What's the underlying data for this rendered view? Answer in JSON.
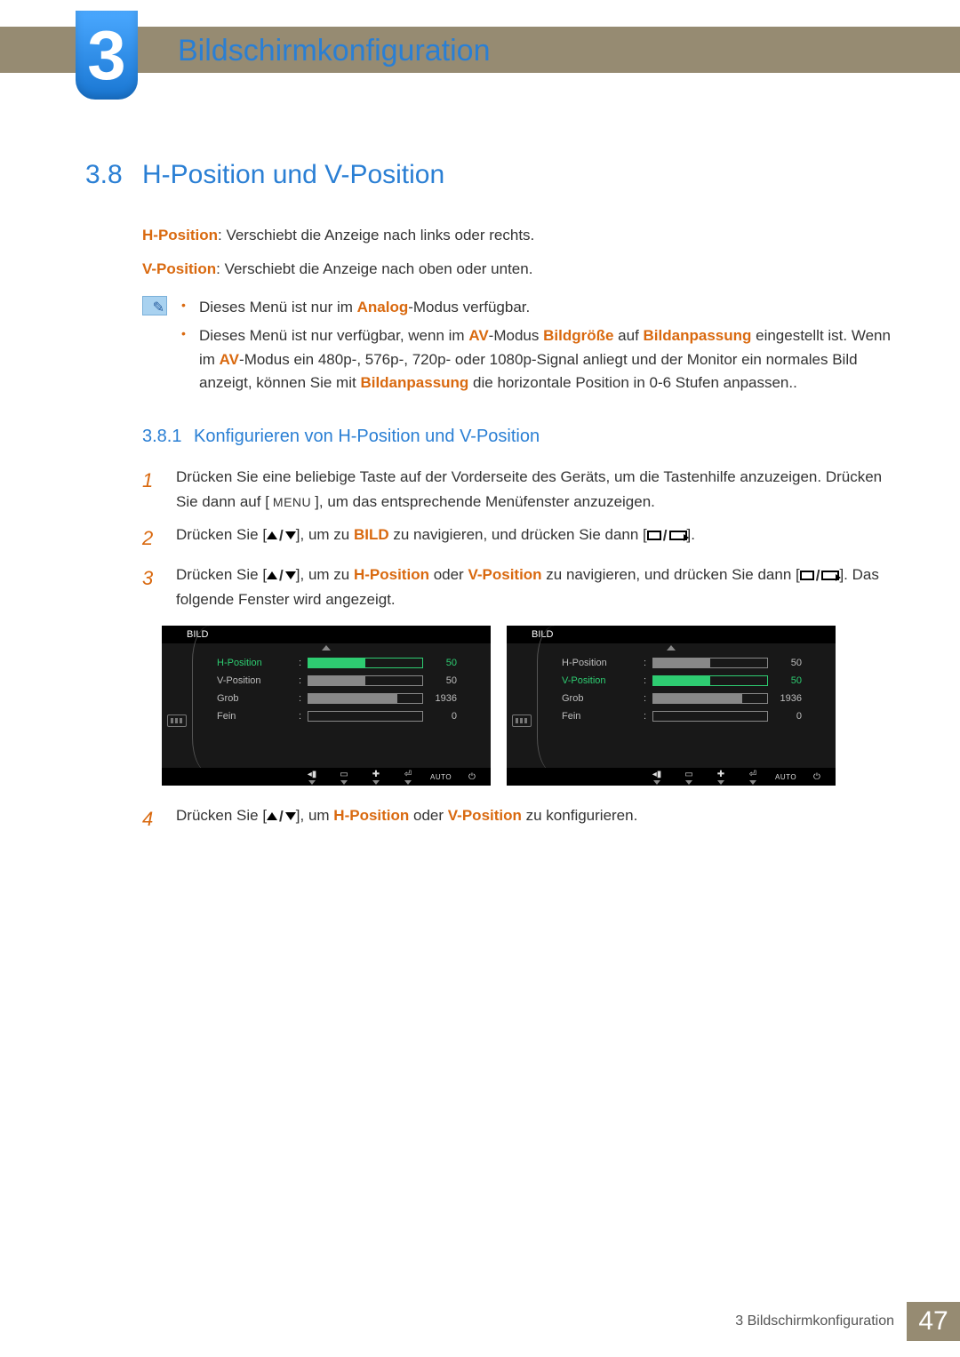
{
  "chapter": {
    "number": "3",
    "title": "Bildschirmkonfiguration"
  },
  "section": {
    "number": "3.8",
    "title": "H-Position und V-Position",
    "hpos_label": "H-Position",
    "hpos_desc": ": Verschiebt die Anzeige nach links oder rechts.",
    "vpos_label": "V-Position",
    "vpos_desc": ": Verschiebt die Anzeige nach oben oder unten."
  },
  "notes": {
    "b1_a": "Dieses Menü ist nur im ",
    "b1_em": "Analog",
    "b1_b": "-Modus verfügbar.",
    "b2_a": "Dieses Menü ist nur verfügbar, wenn im ",
    "b2_em1": "AV",
    "b2_b": "-Modus ",
    "b2_em2": "Bildgröße",
    "b2_c": " auf ",
    "b2_em3": "Bildanpassung",
    "b2_d": " eingestellt ist. Wenn im ",
    "b2_em4": "AV",
    "b2_e": "-Modus ein 480p-, 576p-, 720p- oder 1080p-Signal anliegt und der Monitor ein normales Bild anzeigt, können Sie mit ",
    "b2_em5": "Bildanpassung",
    "b2_f": " die horizontale Position in 0-6 Stufen anpassen.."
  },
  "subsection": {
    "number": "3.8.1",
    "title": "Konfigurieren von H-Position und V-Position"
  },
  "steps": {
    "s1a": "Drücken Sie eine beliebige Taste auf der Vorderseite des Geräts, um die Tastenhilfe anzuzeigen. Drücken Sie dann auf [",
    "s1_menu": "MENU",
    "s1b": "], um das entsprechende Menüfenster anzuzeigen.",
    "s2a": "Drücken Sie [",
    "s2b": "], um zu ",
    "s2_em": "BILD",
    "s2c": " zu navigieren, und drücken Sie dann [",
    "s2d": "].",
    "s3a": "Drücken Sie [",
    "s3b": "], um zu ",
    "s3_em1": "H-Position",
    "s3c": " oder ",
    "s3_em2": "V-Position",
    "s3d": " zu navigieren, und drücken Sie dann [",
    "s3e": "]. Das folgende Fenster wird angezeigt.",
    "s4a": "Drücken Sie [",
    "s4b": "], um ",
    "s4_em1": "H-Position",
    "s4c": " oder ",
    "s4_em2": "V-Position",
    "s4d": " zu konfigurieren."
  },
  "osd": {
    "title": "BILD",
    "auto": "AUTO",
    "left": {
      "active_index": 0,
      "items": [
        {
          "label": "H-Position",
          "value": "50",
          "fill_pct": 50
        },
        {
          "label": "V-Position",
          "value": "50",
          "fill_pct": 50
        },
        {
          "label": "Grob",
          "value": "1936",
          "fill_pct": 78
        },
        {
          "label": "Fein",
          "value": "0",
          "fill_pct": 0
        }
      ]
    },
    "right": {
      "active_index": 1,
      "items": [
        {
          "label": "H-Position",
          "value": "50",
          "fill_pct": 50
        },
        {
          "label": "V-Position",
          "value": "50",
          "fill_pct": 50
        },
        {
          "label": "Grob",
          "value": "1936",
          "fill_pct": 78
        },
        {
          "label": "Fein",
          "value": "0",
          "fill_pct": 0
        }
      ]
    },
    "colors": {
      "active": "#2ecc71",
      "inactive": "#bdbdbd",
      "bg": "#181818"
    }
  },
  "footer": {
    "text": "3 Bildschirmkonfiguration",
    "page": "47"
  }
}
